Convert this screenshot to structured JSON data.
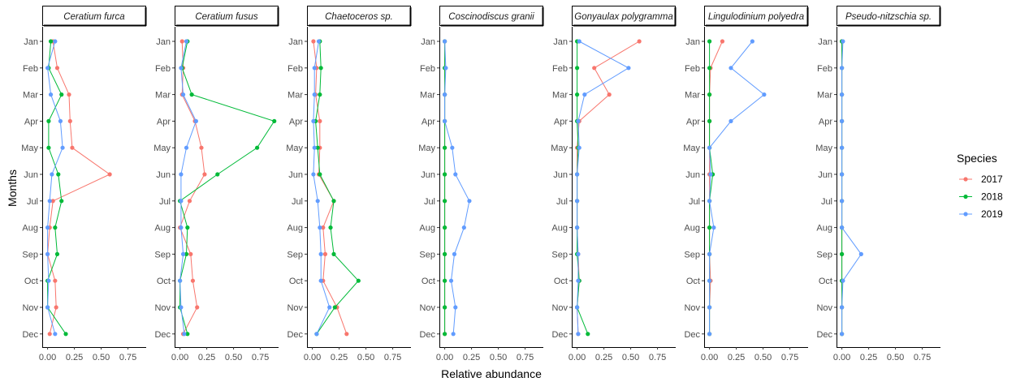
{
  "chart_data": {
    "type": "line",
    "xlabel": "Relative abundance",
    "ylabel": "Months",
    "xlim": [
      -0.05,
      0.92
    ],
    "x_ticks": [
      "0.00",
      "0.25",
      "0.50",
      "0.75"
    ],
    "x_tick_values": [
      0,
      0.25,
      0.5,
      0.75
    ],
    "months": [
      "Jan",
      "Feb",
      "Mar",
      "Apr",
      "May",
      "Jun",
      "Jul",
      "Aug",
      "Sep",
      "Oct",
      "Nov",
      "Dec"
    ],
    "grid": false,
    "legend": {
      "title": "Species",
      "position": "right",
      "entries": [
        {
          "label": "2017",
          "color": "#F8766D"
        },
        {
          "label": "2018",
          "color": "#00BA38"
        },
        {
          "label": "2019",
          "color": "#619CFF"
        }
      ]
    },
    "facets": [
      {
        "title": "Ceratium furca",
        "series": [
          {
            "year": "2017",
            "values": [
              0.05,
              0.09,
              0.2,
              0.21,
              0.23,
              0.58,
              0.05,
              0.02,
              0.0,
              0.07,
              0.08,
              0.02
            ]
          },
          {
            "year": "2018",
            "values": [
              0.03,
              0.01,
              0.13,
              0.01,
              0.01,
              0.1,
              0.13,
              0.07,
              0.09,
              0.0,
              0.0,
              0.17
            ]
          },
          {
            "year": "2019",
            "values": [
              0.07,
              0.0,
              0.03,
              0.12,
              0.14,
              0.04,
              0.02,
              0.0,
              0.0,
              0.01,
              0.0,
              0.07
            ]
          }
        ]
      },
      {
        "title": "Ceratium fusus",
        "series": [
          {
            "year": "2017",
            "values": [
              0.02,
              0.03,
              0.02,
              0.14,
              0.2,
              0.23,
              0.09,
              0.0,
              0.1,
              0.12,
              0.16,
              0.03
            ]
          },
          {
            "year": "2018",
            "values": [
              0.07,
              0.02,
              0.11,
              0.88,
              0.72,
              0.35,
              0.0,
              0.07,
              0.06,
              0.0,
              0.0,
              0.07
            ]
          },
          {
            "year": "2019",
            "values": [
              0.06,
              0.01,
              0.03,
              0.15,
              0.06,
              0.01,
              0.01,
              0.01,
              0.03,
              0.0,
              0.01,
              0.04
            ]
          }
        ]
      },
      {
        "title": "Chaetoceros sp.",
        "series": [
          {
            "year": "2017",
            "values": [
              0.01,
              0.04,
              0.03,
              0.07,
              0.07,
              0.06,
              0.2,
              0.1,
              0.12,
              0.1,
              0.23,
              0.32
            ]
          },
          {
            "year": "2018",
            "values": [
              0.07,
              0.08,
              0.07,
              0.03,
              0.05,
              0.07,
              0.2,
              0.17,
              0.2,
              0.43,
              0.21,
              0.04
            ]
          },
          {
            "year": "2019",
            "values": [
              0.06,
              0.02,
              0.02,
              0.01,
              0.02,
              0.01,
              0.05,
              0.07,
              0.08,
              0.08,
              0.16,
              0.04
            ]
          }
        ]
      },
      {
        "title": "Coscinodiscus granii",
        "series": [
          {
            "year": "2017",
            "values": [
              0.0,
              0.0,
              0.0,
              0.0,
              0.0,
              0.0,
              0.0,
              0.0,
              0.0,
              0.0,
              0.0,
              0.0
            ]
          },
          {
            "year": "2018",
            "values": [
              0.0,
              0.0,
              0.0,
              0.0,
              0.0,
              0.0,
              0.0,
              0.0,
              0.0,
              0.0,
              0.0,
              0.0
            ]
          },
          {
            "year": "2019",
            "values": [
              0.0,
              0.01,
              0.0,
              0.0,
              0.07,
              0.1,
              0.23,
              0.18,
              0.09,
              0.06,
              0.1,
              0.08
            ]
          }
        ]
      },
      {
        "title": "Gonyaulax polygramma",
        "series": [
          {
            "year": "2017",
            "values": [
              0.58,
              0.16,
              0.3,
              0.02,
              0.0,
              0.0,
              0.0,
              0.0,
              0.01,
              0.02,
              0.0,
              0.01
            ]
          },
          {
            "year": "2018",
            "values": [
              0.0,
              0.0,
              0.0,
              0.0,
              0.01,
              0.0,
              0.0,
              0.0,
              0.0,
              0.02,
              0.0,
              0.1
            ]
          },
          {
            "year": "2019",
            "values": [
              0.02,
              0.48,
              0.07,
              0.01,
              0.02,
              0.0,
              0.0,
              0.0,
              0.01,
              0.01,
              0.0,
              0.01
            ]
          }
        ]
      },
      {
        "title": "Lingulodinium polyedra",
        "series": [
          {
            "year": "2017",
            "values": [
              0.12,
              0.01,
              0.0,
              0.0,
              0.0,
              0.0,
              0.0,
              0.0,
              0.0,
              0.01,
              0.0,
              0.0
            ]
          },
          {
            "year": "2018",
            "values": [
              0.0,
              0.0,
              0.0,
              0.0,
              0.0,
              0.03,
              0.0,
              0.0,
              0.0,
              0.0,
              0.0,
              0.0
            ]
          },
          {
            "year": "2019",
            "values": [
              0.4,
              0.2,
              0.51,
              0.2,
              0.0,
              0.01,
              0.0,
              0.04,
              0.0,
              0.0,
              0.0,
              0.0
            ]
          }
        ]
      },
      {
        "title": "Pseudo-nitzschia sp.",
        "series": [
          {
            "year": "2017",
            "values": [
              0.0,
              0.0,
              0.0,
              0.0,
              0.0,
              0.0,
              0.0,
              0.0,
              0.0,
              0.0,
              0.0,
              0.0
            ]
          },
          {
            "year": "2018",
            "values": [
              0.0,
              0.0,
              0.0,
              0.0,
              0.0,
              0.0,
              0.0,
              0.0,
              0.0,
              0.0,
              0.0,
              0.0
            ]
          },
          {
            "year": "2019",
            "values": [
              0.01,
              0.0,
              0.0,
              0.0,
              0.0,
              0.0,
              0.0,
              0.0,
              0.18,
              0.01,
              0.0,
              0.0
            ]
          }
        ]
      }
    ]
  }
}
